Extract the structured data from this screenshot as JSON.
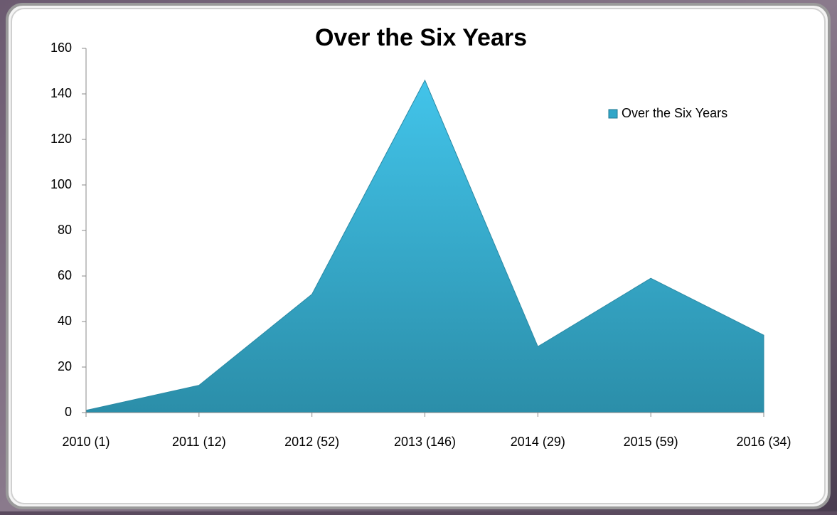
{
  "chart_data": {
    "type": "area",
    "title": "Over the Six Years",
    "categories": [
      "2010 (1)",
      "2011 (12)",
      "2012 (52)",
      "2013 (146)",
      "2014 (29)",
      "2015 (59)",
      "2016 (34)"
    ],
    "series": [
      {
        "name": "Over the Six Years",
        "color": "#30a6c8",
        "values": [
          1,
          12,
          52,
          146,
          29,
          59,
          34
        ]
      }
    ],
    "ylim": [
      0,
      160
    ],
    "yticks": [
      0,
      20,
      40,
      60,
      80,
      100,
      120,
      140,
      160
    ],
    "grid": false,
    "legend": "top-right"
  }
}
